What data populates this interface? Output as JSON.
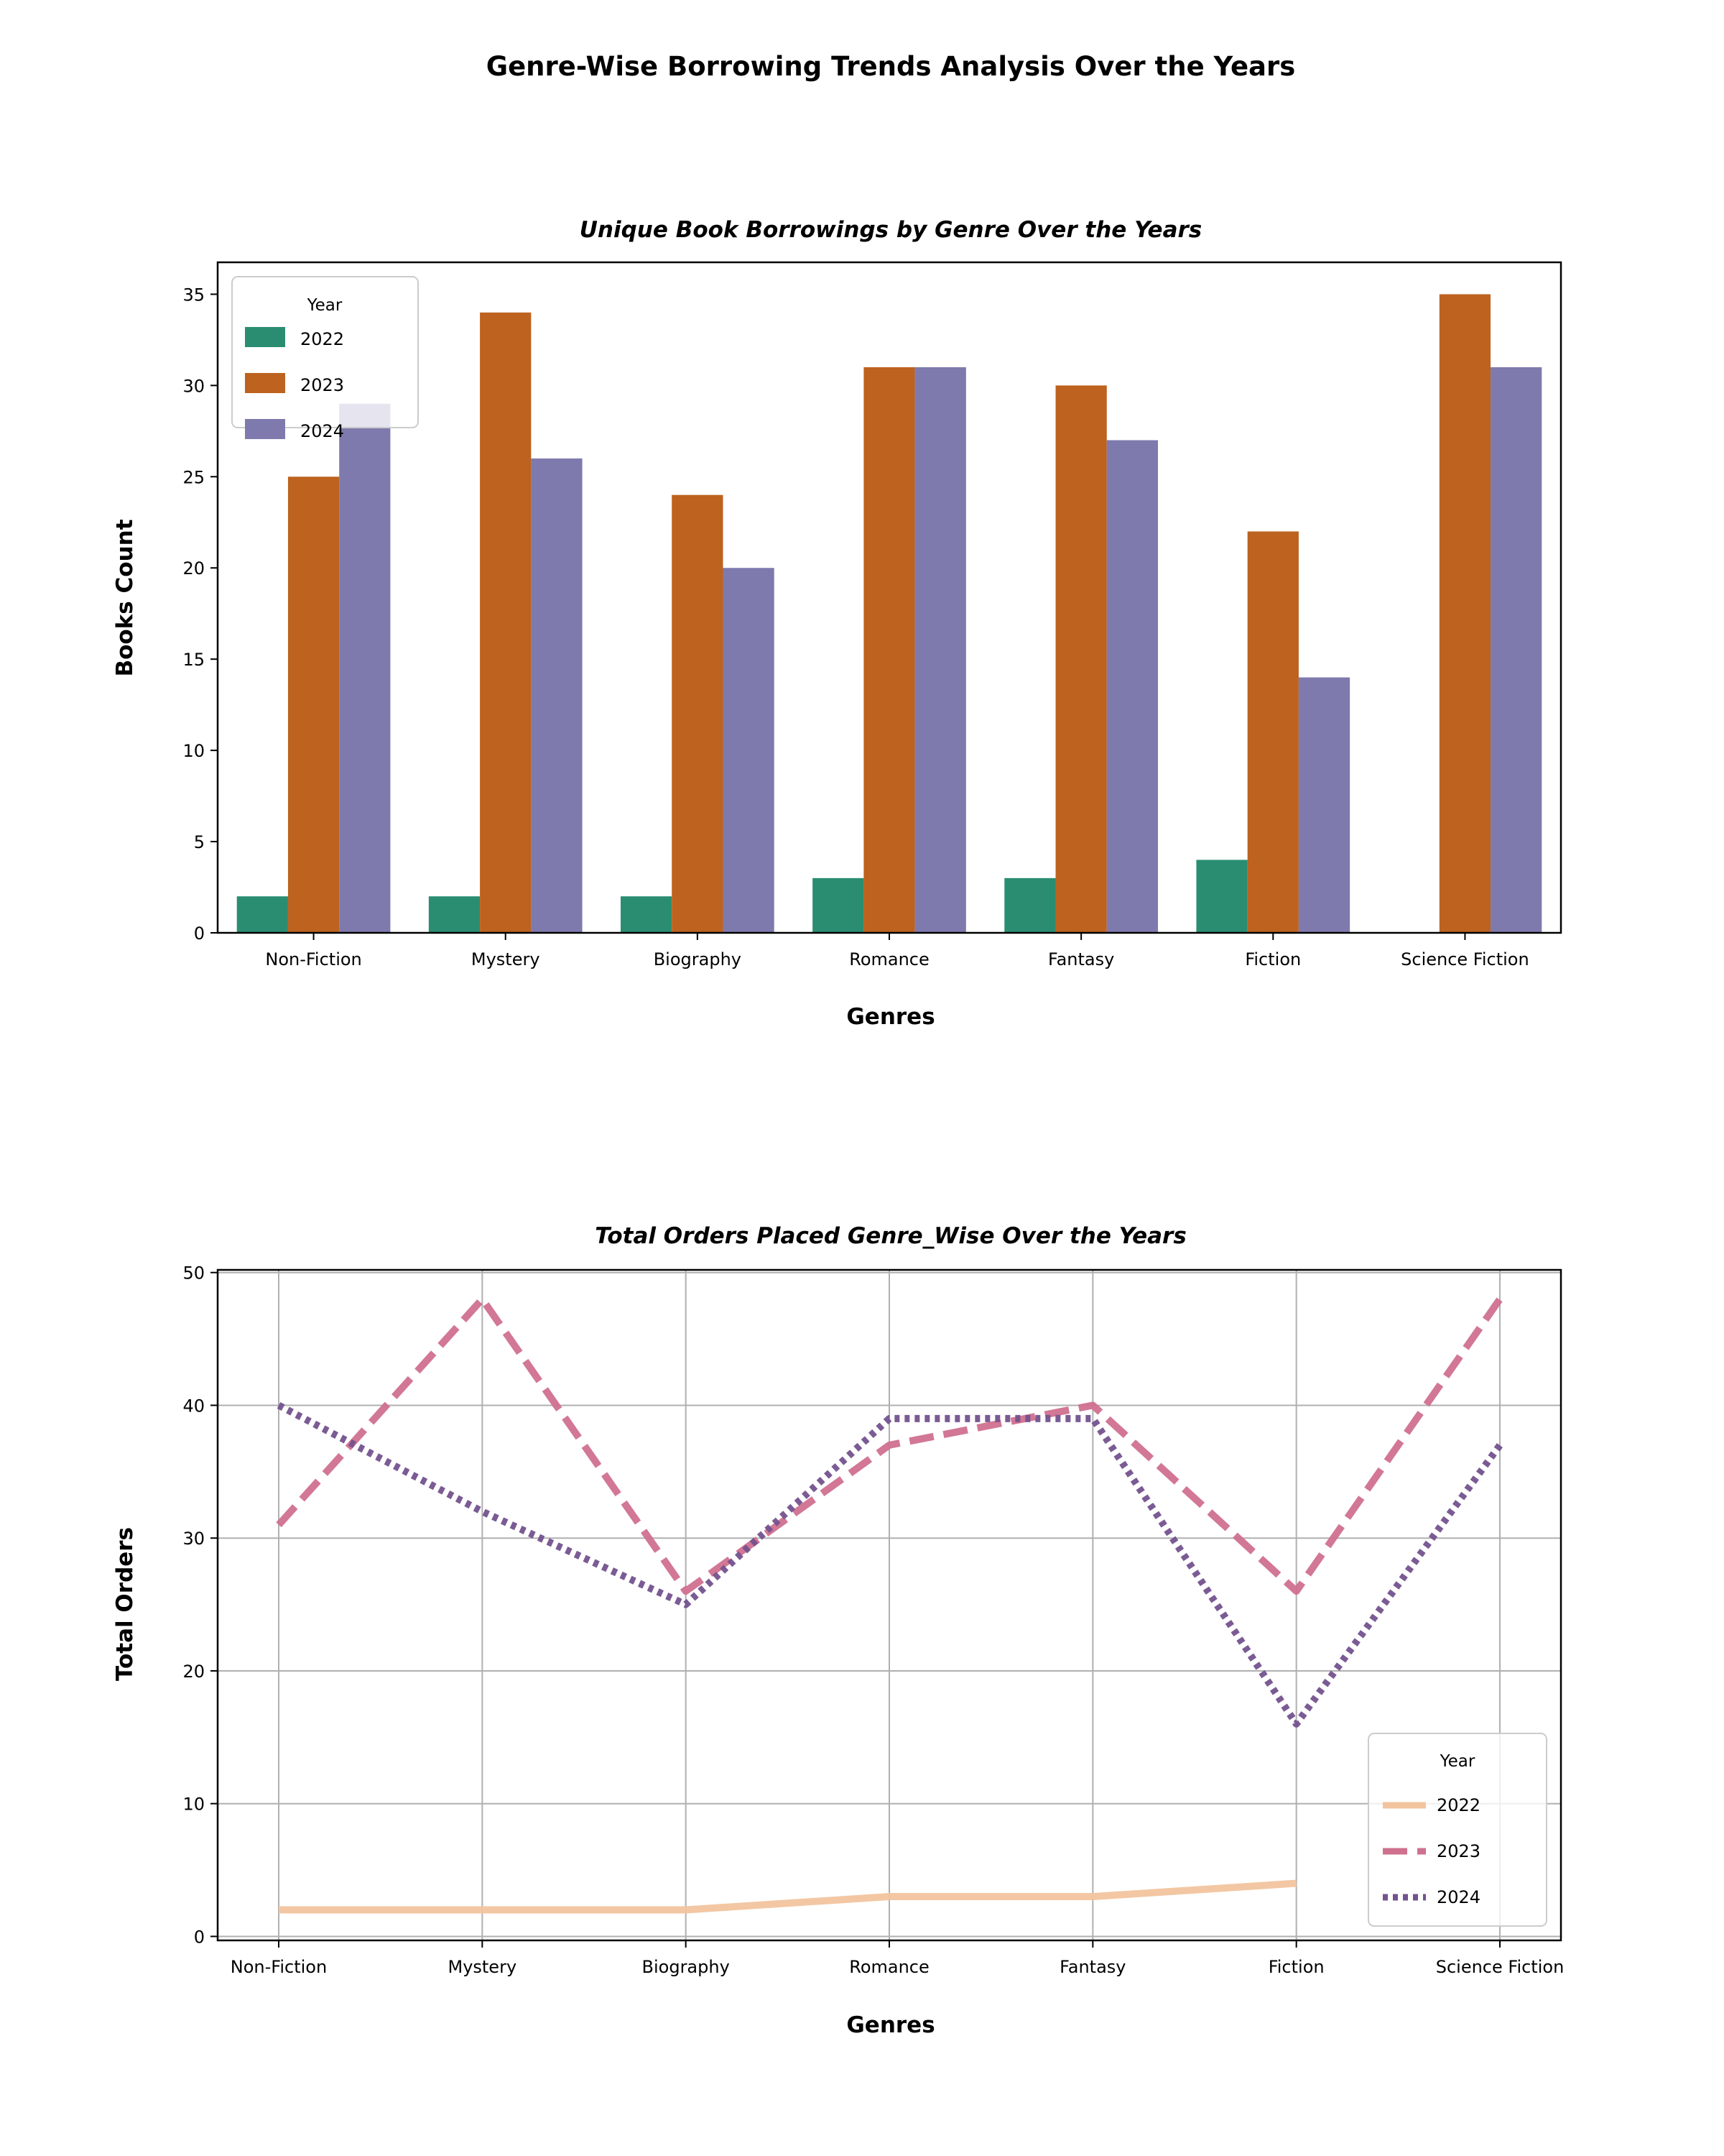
{
  "figure": {
    "title": "Genre-Wise Borrowing Trends Analysis Over the Years"
  },
  "colors": {
    "bar_2022": "#2a8d72",
    "bar_2023": "#bd621f",
    "bar_2024": "#7e7aad",
    "line_2022": "#f2c49e",
    "line_2023": "#d0708f",
    "line_2024": "#74528e"
  },
  "chart_data": [
    {
      "type": "bar",
      "title": "Unique Book Borrowings by Genre Over the Years",
      "xlabel": "Genres",
      "ylabel": "Books Count",
      "categories": [
        "Non-Fiction",
        "Mystery",
        "Biography",
        "Romance",
        "Fantasy",
        "Fiction",
        "Science Fiction"
      ],
      "series": [
        {
          "name": "2022",
          "values": [
            2,
            2,
            2,
            3,
            3,
            4,
            null
          ]
        },
        {
          "name": "2023",
          "values": [
            25,
            34,
            24,
            31,
            30,
            22,
            35
          ]
        },
        {
          "name": "2024",
          "values": [
            29,
            26,
            20,
            31,
            27,
            14,
            31
          ]
        }
      ],
      "ylim": [
        0,
        36.75
      ],
      "yticks": [
        0,
        5,
        10,
        15,
        20,
        25,
        30,
        35
      ],
      "grid": false,
      "legend": {
        "title": "Year",
        "position": "top-left"
      }
    },
    {
      "type": "line",
      "title": "Total Orders Placed Genre_Wise Over the Years",
      "xlabel": "Genres",
      "ylabel": "Total Orders",
      "categories": [
        "Non-Fiction",
        "Mystery",
        "Biography",
        "Romance",
        "Fantasy",
        "Fiction",
        "Science Fiction"
      ],
      "series": [
        {
          "name": "2022",
          "values": [
            2,
            2,
            2,
            3,
            3,
            4,
            null
          ],
          "style": "solid"
        },
        {
          "name": "2023",
          "values": [
            31,
            48,
            26,
            37,
            40,
            26,
            48
          ],
          "style": "dashed"
        },
        {
          "name": "2024",
          "values": [
            40,
            32,
            25,
            39,
            39,
            16,
            37
          ],
          "style": "dotted"
        }
      ],
      "ylim": [
        -0.3,
        50.2
      ],
      "yticks": [
        0,
        10,
        20,
        30,
        40,
        50
      ],
      "grid": true,
      "legend": {
        "title": "Year",
        "position": "bottom-right"
      }
    }
  ]
}
